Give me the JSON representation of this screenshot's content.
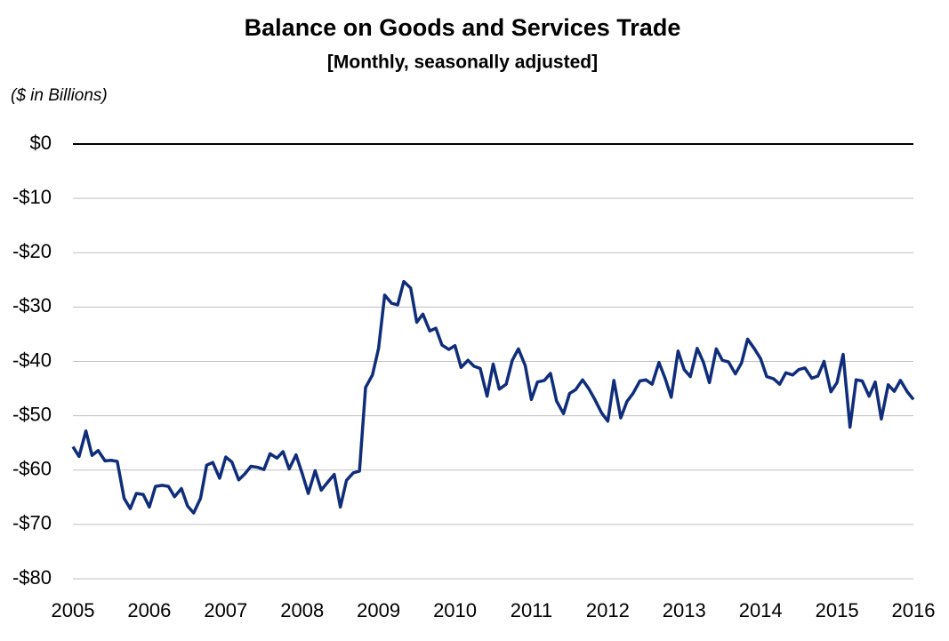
{
  "chart_data": {
    "type": "line",
    "title": "Balance on Goods and Services Trade",
    "subtitle": "[Monthly, seasonally adjusted]",
    "y_label": "($ in Billions)",
    "x": [
      2005,
      2005.08,
      2005.17,
      2005.25,
      2005.33,
      2005.42,
      2005.5,
      2005.58,
      2005.67,
      2005.75,
      2005.83,
      2005.92,
      2006,
      2006.08,
      2006.17,
      2006.25,
      2006.33,
      2006.42,
      2006.5,
      2006.58,
      2006.67,
      2006.75,
      2006.83,
      2006.92,
      2007,
      2007.08,
      2007.17,
      2007.25,
      2007.33,
      2007.42,
      2007.5,
      2007.58,
      2007.67,
      2007.75,
      2007.83,
      2007.92,
      2008,
      2008.08,
      2008.17,
      2008.25,
      2008.33,
      2008.42,
      2008.5,
      2008.58,
      2008.67,
      2008.75,
      2008.83,
      2008.92,
      2009,
      2009.08,
      2009.17,
      2009.25,
      2009.33,
      2009.42,
      2009.5,
      2009.58,
      2009.67,
      2009.75,
      2009.83,
      2009.92,
      2010,
      2010.08,
      2010.17,
      2010.25,
      2010.33,
      2010.42,
      2010.5,
      2010.58,
      2010.67,
      2010.75,
      2010.83,
      2010.92,
      2011,
      2011.08,
      2011.17,
      2011.25,
      2011.33,
      2011.42,
      2011.5,
      2011.58,
      2011.67,
      2011.75,
      2011.83,
      2011.92,
      2012,
      2012.08,
      2012.17,
      2012.25,
      2012.33,
      2012.42,
      2012.5,
      2012.58,
      2012.67,
      2012.75,
      2012.83,
      2012.92,
      2013,
      2013.08,
      2013.17,
      2013.25,
      2013.33,
      2013.42,
      2013.5,
      2013.58,
      2013.67,
      2013.75,
      2013.83,
      2013.92,
      2014,
      2014.08,
      2014.17,
      2014.25,
      2014.33,
      2014.42,
      2014.5,
      2014.58,
      2014.67,
      2014.75,
      2014.83,
      2014.92,
      2015,
      2015.08,
      2015.17,
      2015.25,
      2015.33,
      2015.42,
      2015.5,
      2015.58,
      2015.67,
      2015.75,
      2015.83,
      2015.92,
      2016
    ],
    "series": [
      {
        "color": "#0f2d7a",
        "values": [
          -55.7,
          -57.5,
          -52.8,
          -57.3,
          -56.4,
          -58.3,
          -58.2,
          -58.4,
          -65.2,
          -67.1,
          -64.3,
          -64.5,
          -66.8,
          -63.0,
          -62.8,
          -63.0,
          -64.9,
          -63.4,
          -66.6,
          -67.9,
          -65.2,
          -59.1,
          -58.6,
          -61.5,
          -57.6,
          -58.5,
          -61.8,
          -60.7,
          -59.3,
          -59.5,
          -59.9,
          -57.0,
          -57.8,
          -56.6,
          -59.8,
          -57.2,
          -60.6,
          -64.3,
          -60.1,
          -63.7,
          -62.3,
          -60.8,
          -66.8,
          -61.9,
          -60.5,
          -60.2,
          -44.8,
          -42.5,
          -37.6,
          -27.8,
          -29.3,
          -29.6,
          -25.3,
          -26.5,
          -32.8,
          -31.3,
          -34.4,
          -33.9,
          -37.0,
          -37.8,
          -37.1,
          -41.1,
          -39.8,
          -40.9,
          -41.3,
          -46.4,
          -40.5,
          -45.1,
          -44.2,
          -39.8,
          -37.7,
          -40.8,
          -47.0,
          -43.8,
          -43.5,
          -42.2,
          -47.3,
          -49.6,
          -45.9,
          -45.2,
          -43.4,
          -45.0,
          -47.0,
          -49.5,
          -51.0,
          -43.5,
          -50.4,
          -47.4,
          -45.9,
          -43.6,
          -43.4,
          -44.2,
          -40.2,
          -43.1,
          -46.6,
          -38.1,
          -41.5,
          -42.8,
          -37.6,
          -40.1,
          -43.9,
          -37.7,
          -39.8,
          -40.1,
          -42.3,
          -40.3,
          -35.9,
          -37.7,
          -39.5,
          -42.8,
          -43.2,
          -44.2,
          -42.1,
          -42.5,
          -41.5,
          -41.2,
          -43.1,
          -42.7,
          -40.0,
          -45.6,
          -43.9,
          -38.7,
          -52.1,
          -43.4,
          -43.6,
          -46.4,
          -43.8,
          -50.6,
          -44.3,
          -45.5,
          -43.5,
          -45.6,
          -47.0
        ]
      }
    ],
    "xlim": [
      2005,
      2016
    ],
    "xticks": [
      2005,
      2006,
      2007,
      2008,
      2009,
      2010,
      2011,
      2012,
      2013,
      2014,
      2015,
      2016
    ],
    "ylim": [
      -80,
      0
    ],
    "yticks": [
      {
        "value": 0,
        "label": "$0"
      },
      {
        "value": -10,
        "label": "-$10"
      },
      {
        "value": -20,
        "label": "-$20"
      },
      {
        "value": -30,
        "label": "-$30"
      },
      {
        "value": -40,
        "label": "-$40"
      },
      {
        "value": -50,
        "label": "-$50"
      },
      {
        "value": -60,
        "label": "-$60"
      },
      {
        "value": -70,
        "label": "-$70"
      },
      {
        "value": -80,
        "label": "-$80"
      }
    ],
    "grid": true
  }
}
